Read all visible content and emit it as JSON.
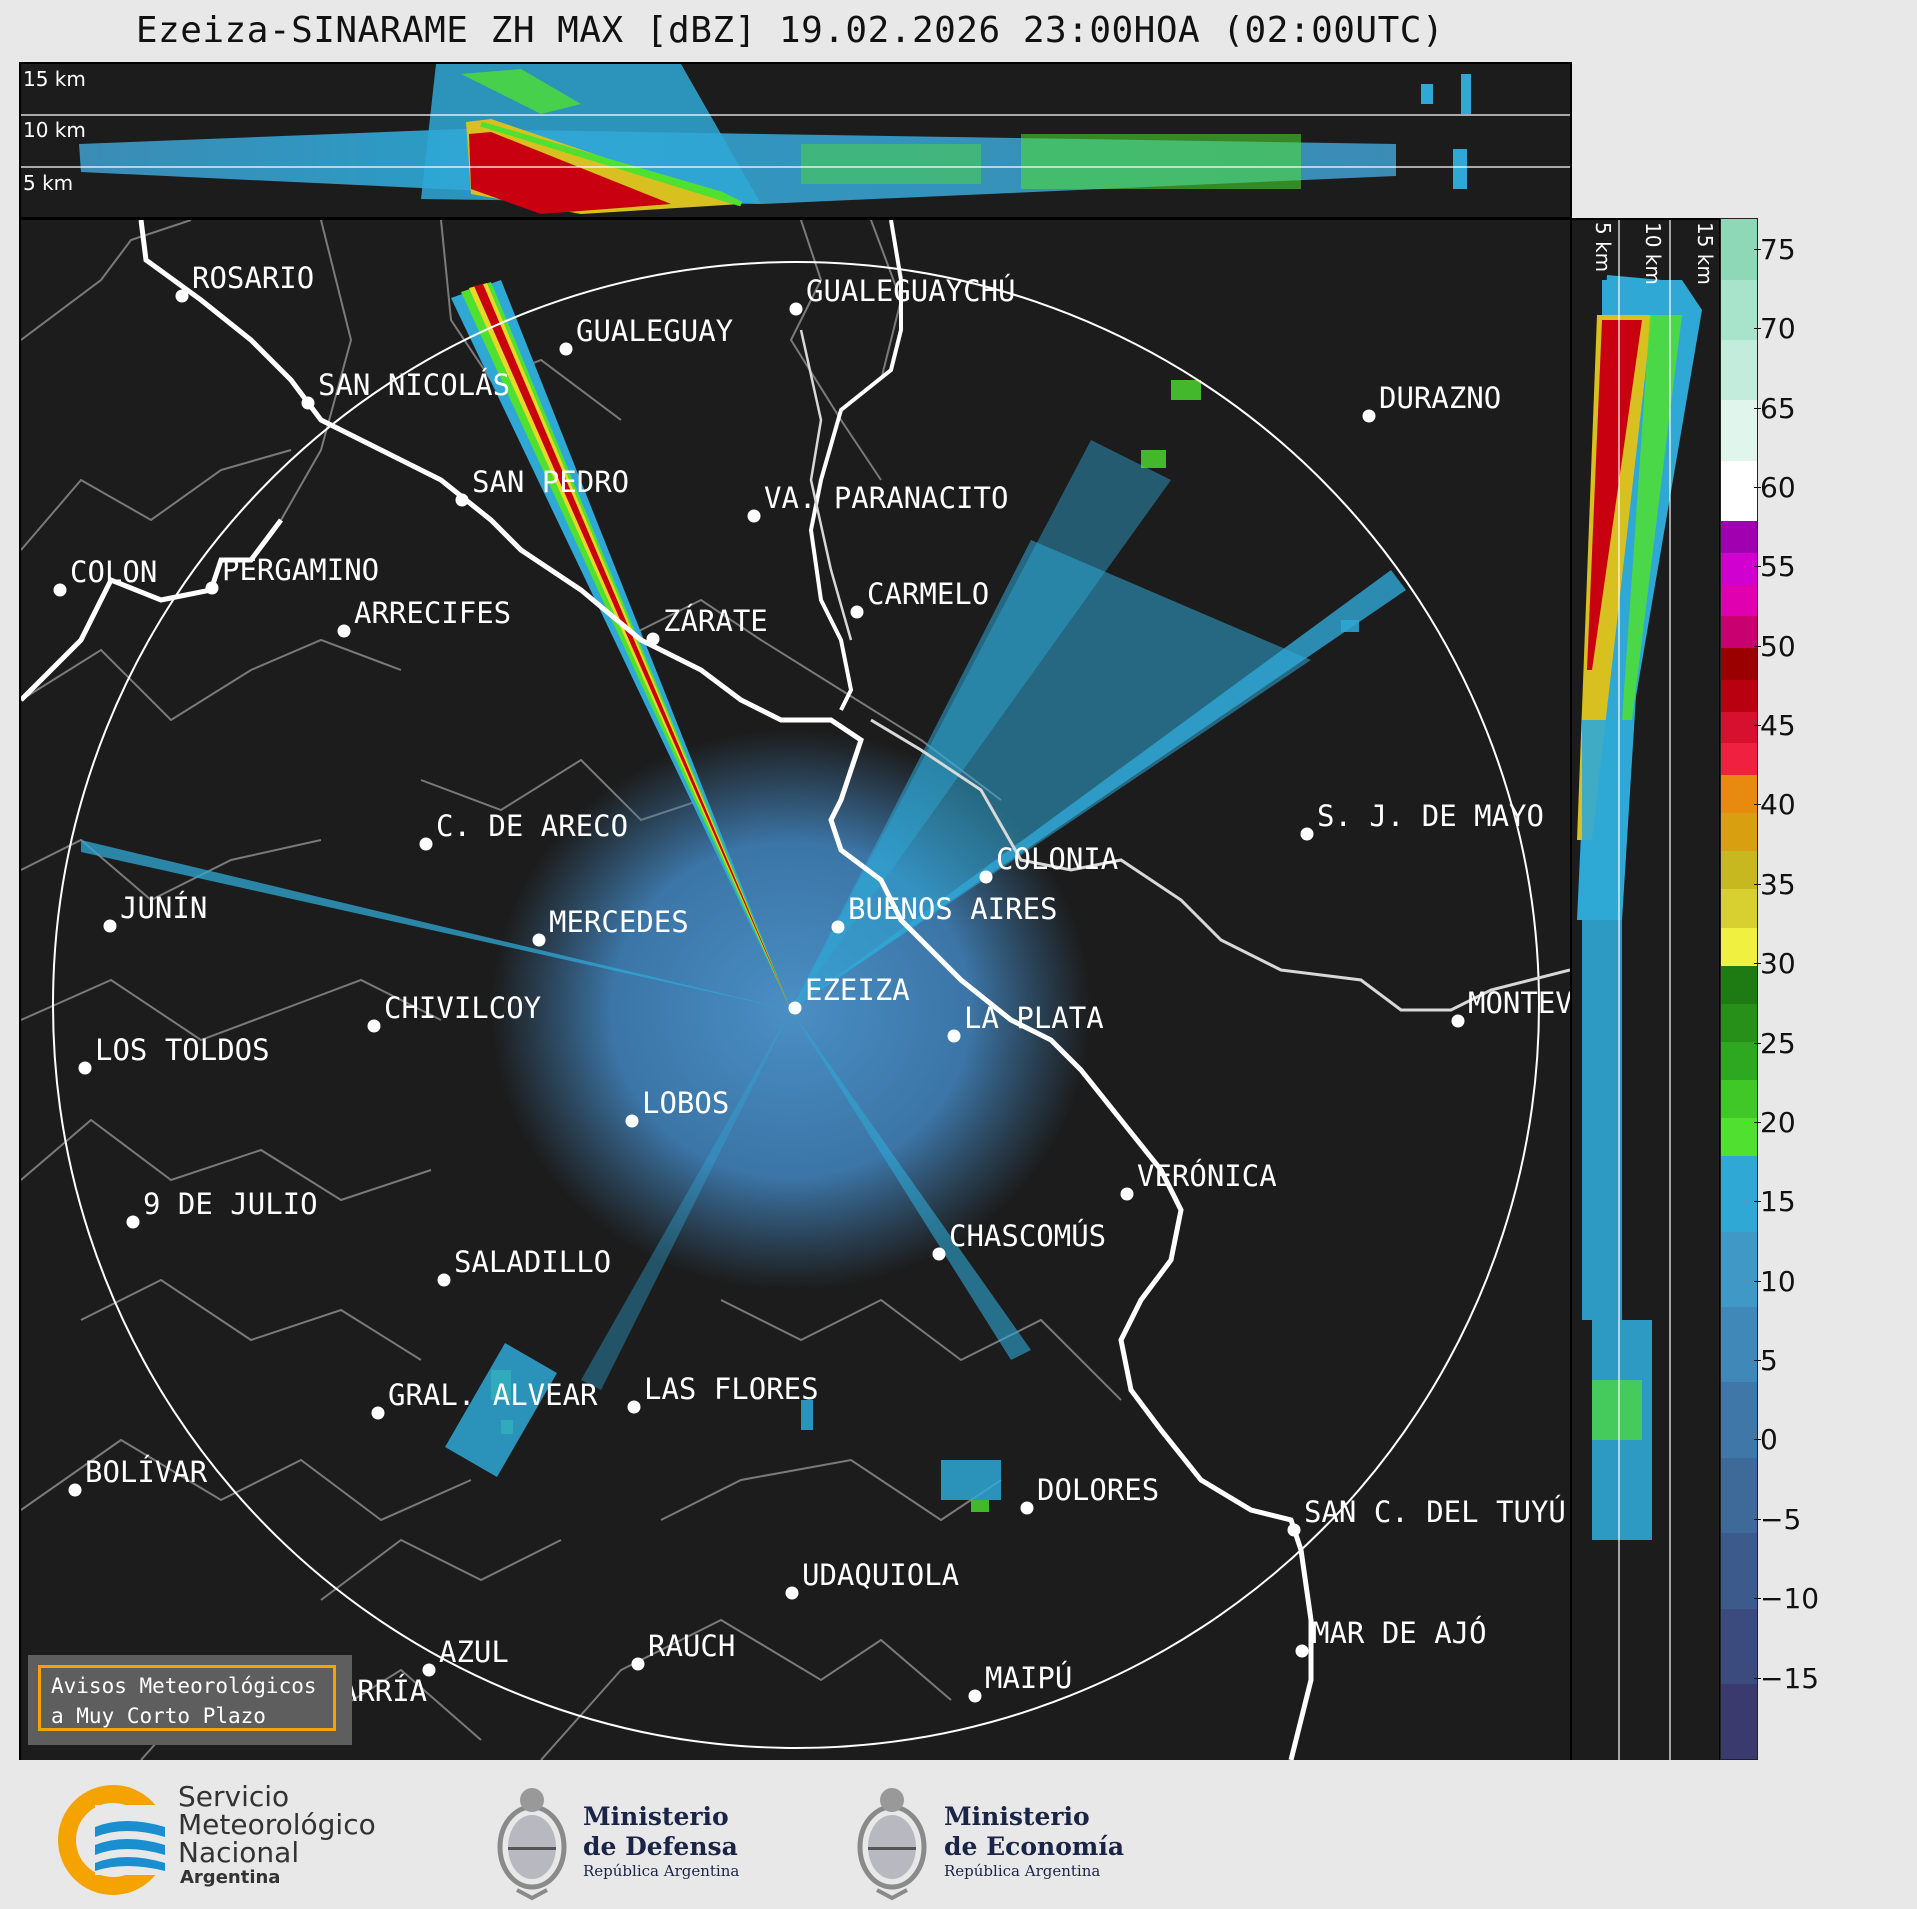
{
  "title": "Ezeiza-SINARAME ZH MAX [dBZ] 19.02.2026 23:00HOA (02:00UTC)",
  "height_labels": {
    "top": [
      "15 km",
      "10 km",
      "5 km"
    ],
    "side": [
      "5 km",
      "10 km",
      "15 km"
    ]
  },
  "radar_site": "EZEIZA",
  "cities": [
    {
      "name": "ROSARIO"
    },
    {
      "name": "GUALEGUAYCHÚ"
    },
    {
      "name": "GUALEGUAY"
    },
    {
      "name": "SAN NICOLÁS"
    },
    {
      "name": "DURAZNO"
    },
    {
      "name": "SAN PEDRO"
    },
    {
      "name": "VA. PARANACITO"
    },
    {
      "name": "COLON"
    },
    {
      "name": "PERGAMINO"
    },
    {
      "name": "CARMELO"
    },
    {
      "name": "ARRECIFES"
    },
    {
      "name": "ZÁRATE"
    },
    {
      "name": "S. J. DE MAYO"
    },
    {
      "name": "C. DE ARECO"
    },
    {
      "name": "COLONIA"
    },
    {
      "name": "JUNÍN"
    },
    {
      "name": "BUENOS AIRES"
    },
    {
      "name": "MERCEDES"
    },
    {
      "name": "EZEIZA"
    },
    {
      "name": "MONTEV"
    },
    {
      "name": "CHIVILCOY"
    },
    {
      "name": "LA PLATA"
    },
    {
      "name": "LOS TOLDOS"
    },
    {
      "name": "LOBOS"
    },
    {
      "name": "VERÓNICA"
    },
    {
      "name": "9 DE JULIO"
    },
    {
      "name": "CHASCOMÚS"
    },
    {
      "name": "SALADILLO"
    },
    {
      "name": "GRAL. ALVEAR"
    },
    {
      "name": "LAS FLORES"
    },
    {
      "name": "BOLÍVAR"
    },
    {
      "name": "DOLORES"
    },
    {
      "name": "SAN C. DEL TUYÚ"
    },
    {
      "name": "UDAQUIOLA"
    },
    {
      "name": "MAR DE AJÓ"
    },
    {
      "name": "AZUL"
    },
    {
      "name": "RAUCH"
    },
    {
      "name": "MAIPÚ"
    },
    {
      "name": "OLAVARRÍA"
    }
  ],
  "colorbar": {
    "ticks": [
      "75",
      "70",
      "65",
      "60",
      "55",
      "50",
      "45",
      "40",
      "35",
      "30",
      "25",
      "20",
      "15",
      "10",
      "5",
      "0",
      "−5",
      "−10",
      "−15"
    ],
    "range": [
      -20,
      77
    ],
    "bands": [
      {
        "from": -20,
        "to": 18,
        "colors": [
          "#3a3a6e",
          "#3b4b7e",
          "#3c5a8c",
          "#3e6a9a",
          "#3f78a8",
          "#3f88b8",
          "#3f98c6",
          "#2fa8d6"
        ]
      },
      {
        "from": 18,
        "to": 30,
        "colors": [
          "#4fe030",
          "#3fc828",
          "#2ea820",
          "#269018",
          "#1e7a12"
        ]
      },
      {
        "from": 30,
        "to": 42,
        "colors": [
          "#f0f040",
          "#d8d030",
          "#c8b820",
          "#d8a010",
          "#e88a10"
        ]
      },
      {
        "from": 42,
        "to": 50,
        "colors": [
          "#f02040",
          "#d81030",
          "#b80010",
          "#9a0000"
        ]
      },
      {
        "from": 50,
        "to": 58,
        "colors": [
          "#c80070",
          "#e000b0",
          "#d000d0",
          "#a000b0"
        ]
      },
      {
        "from": 58,
        "to": 77,
        "colors": [
          "#ffffff",
          "#e0f5ec",
          "#c4ecdc",
          "#a8e4cc",
          "#8ed8b8"
        ]
      }
    ]
  },
  "aviso": [
    "Avisos Meteorológicos",
    "a Muy Corto Plazo"
  ],
  "logos": {
    "smn": [
      "Servicio",
      "Meteorológico",
      "Nacional",
      "Argentina"
    ],
    "defensa": [
      "Ministerio",
      "de Defensa",
      "República Argentina"
    ],
    "economia": [
      "Ministerio",
      "de Economía",
      "República Argentina"
    ]
  },
  "colors": {
    "accent_orange": "#f5a300",
    "smn_blue": "#1a8fd0",
    "panel_bg": "#1c1c1c"
  }
}
